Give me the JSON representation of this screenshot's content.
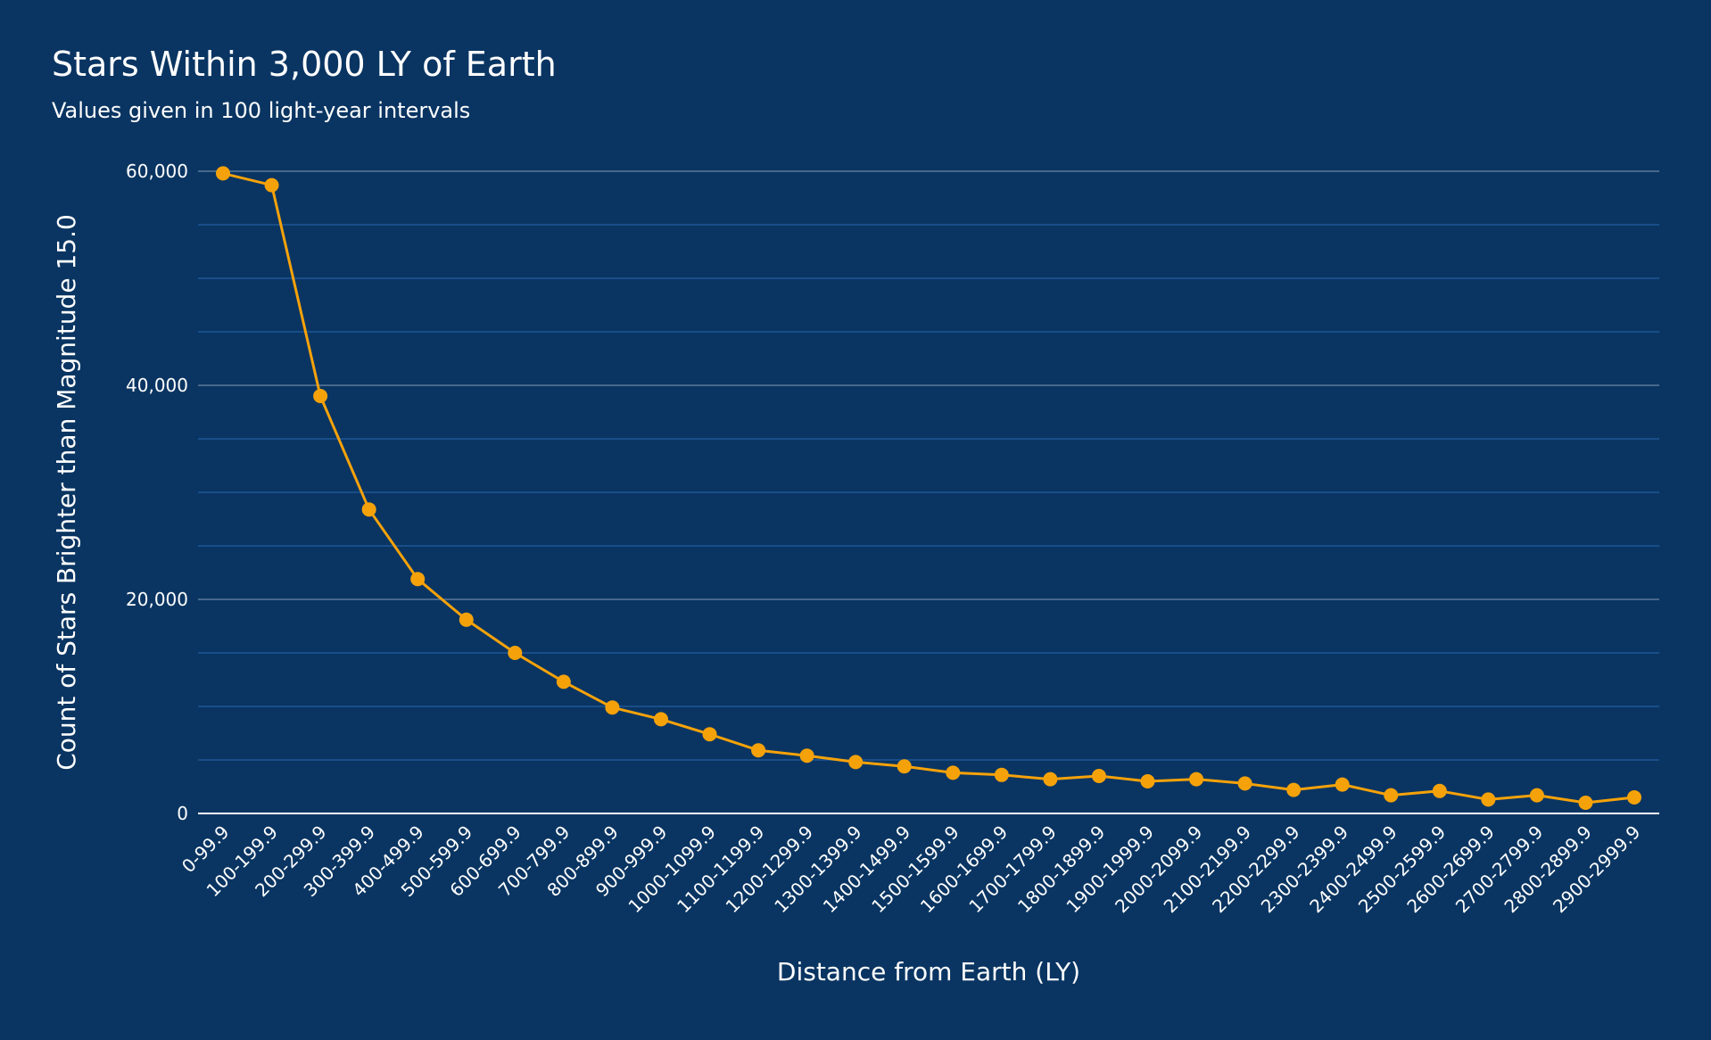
{
  "chart_data": {
    "type": "line",
    "title": "Stars Within 3,000 LY of Earth",
    "subtitle": "Values given in 100 light-year intervals",
    "xlabel": "Distance from Earth (LY)",
    "ylabel": "Count of Stars Brighter than Magnitude 15.0",
    "ylim": [
      0,
      60000
    ],
    "y_ticks": [
      0,
      20000,
      40000,
      60000
    ],
    "y_tick_labels": [
      "0",
      "20,000",
      "40,000",
      "60,000"
    ],
    "minor_grid_step": 5000,
    "grid": true,
    "legend": "none",
    "colors": {
      "background": "#0a3562",
      "line": "#f5a20a",
      "major_grid": "#5d7a9a",
      "minor_grid": "#1d5796",
      "axis": "#ffffff"
    },
    "categories": [
      "0-99.9",
      "100-199.9",
      "200-299.9",
      "300-399.9",
      "400-499.9",
      "500-599.9",
      "600-699.9",
      "700-799.9",
      "800-899.9",
      "900-999.9",
      "1000-1099.9",
      "1100-1199.9",
      "1200-1299.9",
      "1300-1399.9",
      "1400-1499.9",
      "1500-1599.9",
      "1600-1699.9",
      "1700-1799.9",
      "1800-1899.9",
      "1900-1999.9",
      "2000-2099.9",
      "2100-2199.9",
      "2200-2299.9",
      "2300-2399.9",
      "2400-2499.9",
      "2500-2599.9",
      "2600-2699.9",
      "2700-2799.9",
      "2800-2899.9",
      "2900-2999.9"
    ],
    "values": [
      59800,
      58700,
      39000,
      28400,
      21900,
      18100,
      15000,
      12300,
      9900,
      8800,
      7400,
      5900,
      5400,
      4800,
      4400,
      3800,
      3600,
      3200,
      3500,
      3000,
      3200,
      2800,
      2200,
      2700,
      1700,
      2100,
      1300,
      1700,
      1000,
      1500
    ]
  }
}
